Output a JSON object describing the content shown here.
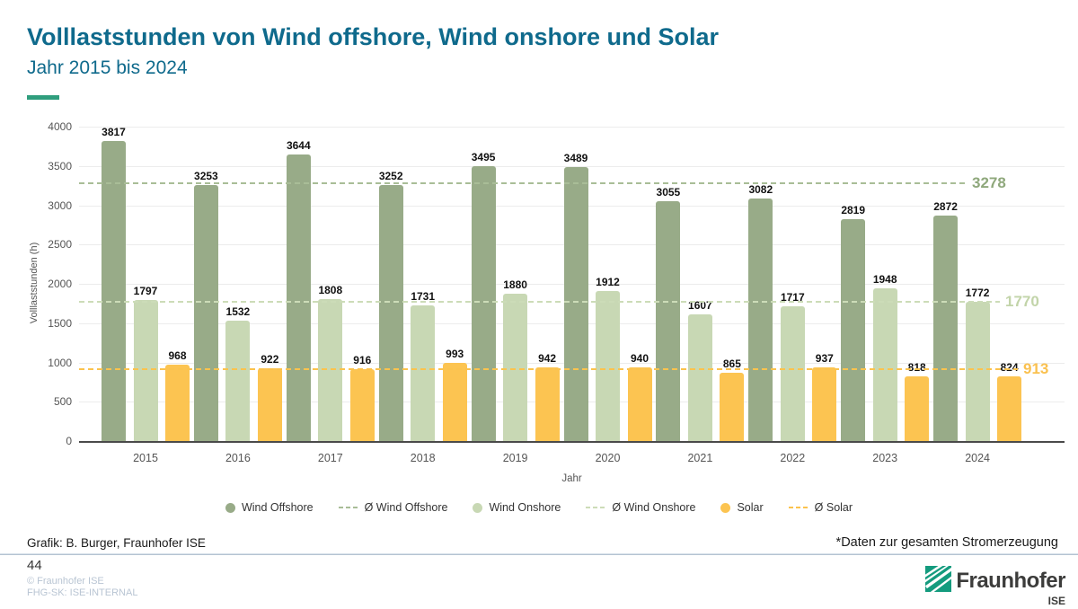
{
  "header": {
    "title": "Volllaststunden von Wind offshore, Wind onshore und Solar",
    "subtitle": "Jahr 2015 bis 2024"
  },
  "chart_data": {
    "type": "bar",
    "title": "Volllaststunden von Wind offshore, Wind onshore und Solar",
    "xlabel": "Jahr",
    "ylabel": "Volllaststunden (h)",
    "ylim": [
      0,
      4000
    ],
    "ytick_step": 500,
    "grid": true,
    "legend_position": "bottom",
    "categories": [
      "2015",
      "2016",
      "2017",
      "2018",
      "2019",
      "2020",
      "2021",
      "2022",
      "2023",
      "2024"
    ],
    "series": [
      {
        "name": "Wind Offshore",
        "color": "#98ab88",
        "values": [
          3817,
          3253,
          3644,
          3252,
          3495,
          3489,
          3055,
          3082,
          2819,
          2872
        ]
      },
      {
        "name": "Wind Onshore",
        "color": "#c8d8b4",
        "values": [
          1797,
          1532,
          1808,
          1731,
          1880,
          1912,
          1607,
          1717,
          1948,
          1772
        ]
      },
      {
        "name": "Solar",
        "color": "#fcc451",
        "values": [
          968,
          922,
          916,
          993,
          942,
          940,
          865,
          937,
          818,
          824
        ]
      }
    ],
    "averages": [
      {
        "name": "Ø Wind Offshore",
        "value": 3278,
        "line_color": "#a9bd97",
        "label_color": "#8fa87c"
      },
      {
        "name": "Ø Wind Onshore",
        "value": 1770,
        "line_color": "#ccdcb8",
        "label_color": "#c2d4a9"
      },
      {
        "name": "Ø Solar",
        "value": 913,
        "line_color": "#fbc34d",
        "label_color": "#fac150"
      }
    ]
  },
  "footer": {
    "credit": "Grafik: B. Burger, Fraunhofer ISE",
    "note": "*Daten zur gesamten Stromerzeugung",
    "page_number": "44",
    "copyright": "© Fraunhofer ISE",
    "classification": "FHG-SK: ISE-INTERNAL",
    "logo": {
      "brand": "Fraunhofer",
      "institute": "ISE"
    }
  },
  "accent_colors": {
    "title_blue": "#0f6a8c",
    "accent_teal": "#2f9e7d",
    "fraunhofer_green": "#149b7e"
  }
}
